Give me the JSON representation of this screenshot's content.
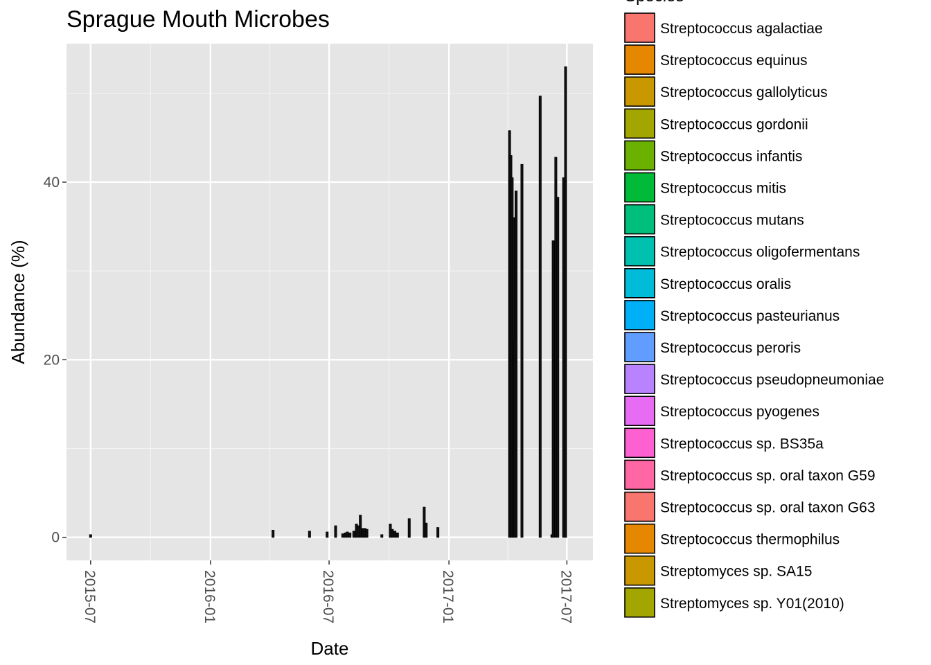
{
  "chart_data": {
    "type": "bar",
    "title": "Sprague Mouth Microbes",
    "xlabel": "Date",
    "ylabel": "Abundance (%)",
    "x_ticks": [
      "2015-07",
      "2016-01",
      "2016-07",
      "2017-01",
      "2017-07"
    ],
    "x_tick_dates": [
      "2015-07-01",
      "2016-01-01",
      "2016-07-01",
      "2017-01-01",
      "2017-07-01"
    ],
    "xlim": [
      "2015-05-25",
      "2017-08-10"
    ],
    "y_ticks": [
      0,
      20,
      40
    ],
    "ylim": [
      -2.6,
      55.6
    ],
    "grid": true,
    "legend_title": "Species",
    "legend_position": "right",
    "species": [
      {
        "name": "Streptococcus agalactiae",
        "color": "#F8766D"
      },
      {
        "name": "Streptococcus equinus",
        "color": "#E58700"
      },
      {
        "name": "Streptococcus gallolyticus",
        "color": "#C99800"
      },
      {
        "name": "Streptococcus gordonii",
        "color": "#A3A500"
      },
      {
        "name": "Streptococcus infantis",
        "color": "#6BB100"
      },
      {
        "name": "Streptococcus mitis",
        "color": "#00BA38"
      },
      {
        "name": "Streptococcus mutans",
        "color": "#00BF7D"
      },
      {
        "name": "Streptococcus oligofermentans",
        "color": "#00C0AF"
      },
      {
        "name": "Streptococcus oralis",
        "color": "#00BCD8"
      },
      {
        "name": "Streptococcus pasteurianus",
        "color": "#00B0F6"
      },
      {
        "name": "Streptococcus peroris",
        "color": "#619CFF"
      },
      {
        "name": "Streptococcus pseudopneumoniae",
        "color": "#B983FF"
      },
      {
        "name": "Streptococcus pyogenes",
        "color": "#E76BF3"
      },
      {
        "name": "Streptococcus sp. BS35a",
        "color": "#FD61D1"
      },
      {
        "name": "Streptococcus sp. oral taxon G59",
        "color": "#FF67A4"
      },
      {
        "name": "Streptococcus sp. oral taxon G63",
        "color": "#F8766D"
      },
      {
        "name": "Streptococcus thermophilus",
        "color": "#E58700"
      },
      {
        "name": "Streptomyces sp. SA15",
        "color": "#C99800"
      },
      {
        "name": "Streptomyces sp. Y01(2010)",
        "color": "#A3A500"
      }
    ],
    "bars": [
      {
        "date": "2015-07-01",
        "value": 0.3
      },
      {
        "date": "2016-04-06",
        "value": 0.8
      },
      {
        "date": "2016-06-01",
        "value": 0.7
      },
      {
        "date": "2016-06-28",
        "value": 0.6
      },
      {
        "date": "2016-07-11",
        "value": 1.3
      },
      {
        "date": "2016-07-22",
        "value": 0.4
      },
      {
        "date": "2016-07-26",
        "value": 0.5
      },
      {
        "date": "2016-07-29",
        "value": 0.6
      },
      {
        "date": "2016-08-02",
        "value": 0.5
      },
      {
        "date": "2016-08-08",
        "value": 0.7
      },
      {
        "date": "2016-08-12",
        "value": 1.5
      },
      {
        "date": "2016-08-15",
        "value": 1.3
      },
      {
        "date": "2016-08-18",
        "value": 2.5
      },
      {
        "date": "2016-08-22",
        "value": 1.0
      },
      {
        "date": "2016-08-25",
        "value": 1.0
      },
      {
        "date": "2016-08-28",
        "value": 0.9
      },
      {
        "date": "2016-09-20",
        "value": 0.3
      },
      {
        "date": "2016-10-03",
        "value": 1.5
      },
      {
        "date": "2016-10-06",
        "value": 0.9
      },
      {
        "date": "2016-10-10",
        "value": 0.7
      },
      {
        "date": "2016-10-14",
        "value": 0.5
      },
      {
        "date": "2016-11-01",
        "value": 2.1
      },
      {
        "date": "2016-11-24",
        "value": 3.4
      },
      {
        "date": "2016-11-27",
        "value": 1.6
      },
      {
        "date": "2016-12-15",
        "value": 1.1
      },
      {
        "date": "2017-04-04",
        "value": 45.8
      },
      {
        "date": "2017-04-06",
        "value": 43.0
      },
      {
        "date": "2017-04-08",
        "value": 40.5
      },
      {
        "date": "2017-04-10",
        "value": 36.0
      },
      {
        "date": "2017-04-12",
        "value": 22.0
      },
      {
        "date": "2017-04-14",
        "value": 39.0
      },
      {
        "date": "2017-04-23",
        "value": 42.0
      },
      {
        "date": "2017-05-21",
        "value": 49.7
      },
      {
        "date": "2017-06-08",
        "value": 0.3
      },
      {
        "date": "2017-06-10",
        "value": 33.4
      },
      {
        "date": "2017-06-14",
        "value": 42.8
      },
      {
        "date": "2017-06-17",
        "value": 38.3
      },
      {
        "date": "2017-06-26",
        "value": 40.5
      },
      {
        "date": "2017-06-29",
        "value": 53.0
      }
    ]
  }
}
